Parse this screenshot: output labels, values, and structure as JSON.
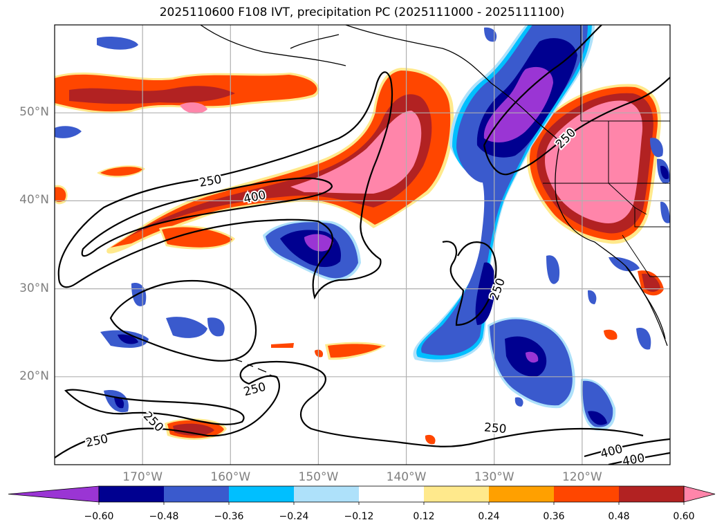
{
  "title": "2025110600 F108 IVT, precipitation PC (2025111000 - 2025111100)",
  "map": {
    "extent": {
      "lon_min": -180,
      "lon_max": -110,
      "lat_min": 10,
      "lat_max": 60
    },
    "lat_gridlines": [
      20,
      30,
      40,
      50
    ],
    "lon_gridlines": [
      -170,
      -160,
      -150,
      -140,
      -130,
      -120
    ],
    "lat_labels": [
      "20°N",
      "30°N",
      "40°N",
      "50°N"
    ],
    "lon_labels": [
      "170°W",
      "160°W",
      "150°W",
      "140°W",
      "130°W",
      "120°W"
    ],
    "contour_labels": [
      "250",
      "400",
      "250",
      "250",
      "250",
      "250",
      "250",
      "400",
      "250",
      "400"
    ]
  },
  "colorbar": {
    "extend": "both",
    "ticks": [
      "−0.60",
      "−0.48",
      "−0.36",
      "−0.24",
      "−0.12",
      "0.12",
      "0.24",
      "0.36",
      "0.48",
      "0.60"
    ],
    "colors": [
      "#9a35d4",
      "#000090",
      "#3a5acd",
      "#00bfff",
      "#aee1fa",
      "#ffffff",
      "#ffe98c",
      "#ffa000",
      "#ff4600",
      "#b22222",
      "#ff85aa"
    ]
  }
}
